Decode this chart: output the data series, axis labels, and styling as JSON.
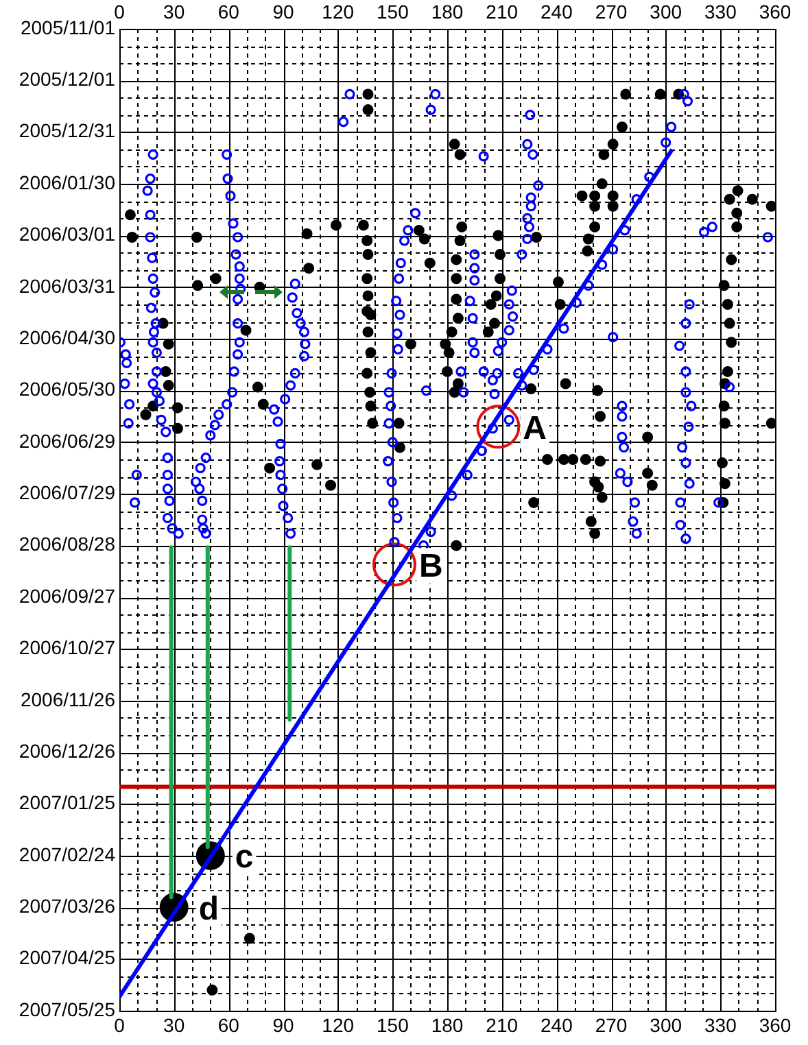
{
  "chart_data": {
    "type": "scatter",
    "orientation": "horizontal",
    "marker": "circle",
    "grid": true,
    "xlim": [
      0,
      360
    ],
    "xticks": [
      0,
      {
        "value": 10,
        "label": null
      },
      {
        "value": 20,
        "label": null
      },
      30,
      {
        "value": 40,
        "label": null
      },
      {
        "value": 50,
        "label": null
      },
      60,
      {
        "value": 70,
        "label": null
      },
      {
        "value": 80,
        "label": null
      },
      90,
      {
        "value": 100,
        "label": null
      },
      {
        "value": 110,
        "label": null
      },
      120,
      {
        "value": 130,
        "label": null
      },
      {
        "value": 140,
        "label": null
      },
      150,
      {
        "value": 160,
        "label": null
      },
      {
        "value": 170,
        "label": null
      },
      180,
      {
        "value": 190,
        "label": null
      },
      {
        "value": 200,
        "label": null
      },
      210,
      {
        "value": 220,
        "label": null
      },
      {
        "value": 230,
        "label": null
      },
      240,
      {
        "value": 250,
        "label": null
      },
      {
        "value": 260,
        "label": null
      },
      270,
      {
        "value": 280,
        "label": null
      },
      {
        "value": 290,
        "label": null
      },
      300,
      {
        "value": 310,
        "label": null
      },
      {
        "value": 320,
        "label": null
      },
      330,
      {
        "value": 340,
        "label": null
      },
      {
        "value": 350,
        "label": null
      },
      360
    ],
    "x2lim": [
      0,
      360
    ],
    "x2ticks": [
      0,
      30,
      60,
      90,
      120,
      150,
      180,
      210,
      240,
      270,
      300,
      330,
      360
    ],
    "ylim": [
      "2007-05-25",
      "2005-11-01"
    ],
    "yticks": [
      {
        "value": "2005-11-01",
        "label": "2005/11/01"
      },
      {
        "value": "2005-11-11",
        "label": null
      },
      {
        "value": "2005-11-21",
        "label": null
      },
      {
        "value": "2005-12-01",
        "label": "2005/12/01"
      },
      {
        "value": "2005-12-11",
        "label": null
      },
      {
        "value": "2005-12-21",
        "label": null
      },
      {
        "value": "2005-12-31",
        "label": "2005/12/31"
      },
      {
        "value": "2006-01-10",
        "label": null
      },
      {
        "value": "2006-01-20",
        "label": null
      },
      {
        "value": "2006-01-30",
        "label": "2006/01/30"
      },
      {
        "value": "2006-02-09",
        "label": null
      },
      {
        "value": "2006-02-19",
        "label": null
      },
      {
        "value": "2006-03-01",
        "label": "2006/03/01"
      },
      {
        "value": "2006-03-11",
        "label": null
      },
      {
        "value": "2006-03-21",
        "label": null
      },
      {
        "value": "2006-03-31",
        "label": "2006/03/31"
      },
      {
        "value": "2006-04-10",
        "label": null
      },
      {
        "value": "2006-04-20",
        "label": null
      },
      {
        "value": "2006-04-30",
        "label": "2006/04/30"
      },
      {
        "value": "2006-05-10",
        "label": null
      },
      {
        "value": "2006-05-20",
        "label": null
      },
      {
        "value": "2006-05-30",
        "label": "2006/05/30"
      },
      {
        "value": "2006-06-09",
        "label": null
      },
      {
        "value": "2006-06-19",
        "label": null
      },
      {
        "value": "2006-06-29",
        "label": "2006/06/29"
      },
      {
        "value": "2006-07-09",
        "label": null
      },
      {
        "value": "2006-07-19",
        "label": null
      },
      {
        "value": "2006-07-29",
        "label": "2006/07/29"
      },
      {
        "value": "2006-08-08",
        "label": null
      },
      {
        "value": "2006-08-18",
        "label": null
      },
      {
        "value": "2006-08-28",
        "label": "2006/08/28"
      },
      {
        "value": "2006-09-07",
        "label": null
      },
      {
        "value": "2006-09-17",
        "label": null
      },
      {
        "value": "2006-09-27",
        "label": "2006/09/27"
      },
      {
        "value": "2006-10-07",
        "label": null
      },
      {
        "value": "2006-10-17",
        "label": null
      },
      {
        "value": "2006-10-27",
        "label": "2006/10/27"
      },
      {
        "value": "2006-11-06",
        "label": null
      },
      {
        "value": "2006-11-16",
        "label": null
      },
      {
        "value": "2006-11-26",
        "label": "2006/11/26"
      },
      {
        "value": "2006-12-06",
        "label": null
      },
      {
        "value": "2006-12-16",
        "label": null
      },
      {
        "value": "2006-12-26",
        "label": "2006/12/26"
      },
      {
        "value": "2007-01-05",
        "label": null
      },
      {
        "value": "2007-01-15",
        "label": null
      },
      {
        "value": "2007-01-25",
        "label": "2007/01/25"
      },
      {
        "value": "2007-02-04",
        "label": null
      },
      {
        "value": "2007-02-14",
        "label": null
      },
      {
        "value": "2007-02-24",
        "label": "2007/02/24"
      },
      {
        "value": "2007-03-06",
        "label": null
      },
      {
        "value": "2007-03-16",
        "label": null
      },
      {
        "value": "2007-03-26",
        "label": "2007/03/26"
      },
      {
        "value": "2007-04-05",
        "label": null
      },
      {
        "value": "2007-04-15",
        "label": null
      },
      {
        "value": "2007-04-25",
        "label": "2007/04/25"
      },
      {
        "value": "2007-05-05",
        "label": null
      },
      {
        "value": "2007-05-15",
        "label": null
      },
      {
        "value": "2007-05-25",
        "label": "2007/05/25"
      }
    ],
    "series": [
      {
        "color": "#0000ff",
        "values": [
          126.5,
          123,
          173.5,
          171,
          18.5,
          17,
          15.5,
          17,
          17,
          18,
          18.5,
          19.5,
          17.5,
          20,
          19,
          18.5,
          20.5,
          20.5,
          18.5,
          20.5,
          22,
          23,
          25.5,
          26.5,
          26.5,
          26.5,
          27.5,
          26.5,
          29,
          32.5,
          0.5,
          3.5,
          4,
          3,
          5.5,
          5,
          9.5,
          8.5,
          59,
          59.5,
          61,
          62.5,
          65,
          64,
          66,
          66,
          66.5,
          65,
          65,
          66,
          65,
          63,
          62,
          59,
          54.5,
          52.5,
          50,
          47.5,
          44.5,
          42,
          44,
          45.5,
          45.5,
          46,
          47.5,
          96.5,
          95,
          97.5,
          99.5,
          101.5,
          102,
          101.5,
          96.5,
          94,
          91,
          85,
          87,
          88.5,
          88,
          88.5,
          89.5,
          90,
          92.5,
          94,
          154.5,
          153.5,
          152,
          154,
          152.5,
          153,
          149.5,
          148,
          149,
          148,
          150,
          147.5,
          149.5,
          150.5,
          152.5,
          162.5,
          158.5,
          156.5,
          168.5,
          225.5,
          224,
          227,
          200,
          230,
          226,
          226,
          224,
          225,
          224,
          221,
          195,
          195,
          195,
          192.5,
          194,
          194,
          195,
          187.5,
          189,
          215.5,
          214,
          216,
          214,
          210,
          208,
          200,
          207.5,
          205,
          206,
          219,
          221,
          303,
          300,
          310,
          312,
          271,
          276,
          276,
          276,
          277,
          275,
          279,
          283,
          282,
          284,
          313,
          311,
          307.5,
          311,
          311,
          314,
          312.5,
          309,
          311,
          313,
          308,
          308,
          311,
          321,
          325.5,
          356,
          335,
          329,
          291,
          284,
          277.5,
          271,
          265,
          257.5,
          251,
          244,
          235,
          227.5,
          214,
          205,
          199,
          191,
          182.5,
          151,
          167,
          171
        ],
        "x": [
          "2005-12-09",
          "2005-12-25",
          "2005-12-09",
          "2005-12-18",
          "2006-01-13",
          "2006-01-27",
          "2006-02-03",
          "2006-02-17",
          "2006-03-02",
          "2006-03-14",
          "2006-03-26",
          "2006-04-03",
          "2006-04-12",
          "2006-04-21",
          "2006-04-26",
          "2006-05-02",
          "2006-05-08",
          "2006-05-19",
          "2006-05-26",
          "2006-05-31",
          "2006-06-05",
          "2006-06-16",
          "2006-06-23",
          "2006-07-08",
          "2006-07-18",
          "2006-07-26",
          "2006-08-02",
          "2006-08-12",
          "2006-08-18",
          "2006-08-21",
          "2006-05-02",
          "2006-05-09",
          "2006-05-14",
          "2006-05-26",
          "2006-06-07",
          "2006-06-18",
          "2006-07-18",
          "2006-08-03",
          "2006-01-13",
          "2006-01-27",
          "2006-02-06",
          "2006-02-22",
          "2006-03-02",
          "2006-03-12",
          "2006-03-19",
          "2006-03-26",
          "2006-04-01",
          "2006-04-07",
          "2006-04-21",
          "2006-05-02",
          "2006-05-09",
          "2006-05-19",
          "2006-05-31",
          "2006-06-07",
          "2006-06-13",
          "2006-06-19",
          "2006-06-25",
          "2006-07-08",
          "2006-07-14",
          "2006-07-22",
          "2006-07-26",
          "2006-08-02",
          "2006-08-13",
          "2006-08-18",
          "2006-08-21",
          "2006-03-29",
          "2006-04-06",
          "2006-04-15",
          "2006-04-21",
          "2006-04-26",
          "2006-05-03",
          "2006-05-10",
          "2006-05-20",
          "2006-05-27",
          "2006-06-04",
          "2006-06-10",
          "2006-06-17",
          "2006-06-30",
          "2006-07-10",
          "2006-07-18",
          "2006-07-26",
          "2006-08-05",
          "2006-08-12",
          "2006-08-21",
          "2006-03-17",
          "2006-03-26",
          "2006-04-08",
          "2006-04-16",
          "2006-04-27",
          "2006-05-06",
          "2006-05-20",
          "2006-05-31",
          "2006-06-08",
          "2006-06-18",
          "2006-06-29",
          "2006-07-10",
          "2006-07-22",
          "2006-08-03",
          "2006-08-12",
          "2006-02-16",
          "2006-02-26",
          "2006-03-04",
          "2006-05-30",
          "2005-12-21",
          "2006-01-07",
          "2006-01-13",
          "2006-01-14",
          "2006-01-31",
          "2006-02-07",
          "2006-02-12",
          "2006-02-19",
          "2006-02-24",
          "2006-03-03",
          "2006-03-12",
          "2006-03-12",
          "2006-03-20",
          "2006-03-27",
          "2006-04-08",
          "2006-04-18",
          "2006-05-02",
          "2006-05-08",
          "2006-05-19",
          "2006-05-31",
          "2006-04-02",
          "2006-04-10",
          "2006-04-17",
          "2006-04-25",
          "2006-05-02",
          "2006-05-07",
          "2006-05-19",
          "2006-05-20",
          "2006-05-24",
          "2006-06-01",
          "2006-05-20",
          "2006-05-27",
          "2005-12-28",
          "2006-01-06",
          "2005-12-09",
          "2005-12-13",
          "2006-04-29",
          "2006-06-08",
          "2006-06-14",
          "2006-06-26",
          "2006-07-02",
          "2006-07-17",
          "2006-07-22",
          "2006-08-03",
          "2006-08-14",
          "2006-08-21",
          "2006-04-10",
          "2006-04-21",
          "2006-05-04",
          "2006-05-19",
          "2006-05-31",
          "2006-06-08",
          "2006-06-20",
          "2006-07-02",
          "2006-07-11",
          "2006-07-23",
          "2006-08-03",
          "2006-08-16",
          "2006-08-24",
          "2006-02-27",
          "2006-02-24",
          "2006-03-02",
          "2006-05-28",
          "2006-08-03",
          "2006-01-26",
          "2006-02-08",
          "2006-02-26",
          "2006-03-09",
          "2006-03-18",
          "2006-03-30",
          "2006-04-09",
          "2006-04-24",
          "2006-05-06",
          "2006-05-18",
          "2006-06-16",
          "2006-06-21",
          "2006-07-04",
          "2006-07-18",
          "2006-07-30",
          "2006-08-26",
          "2006-08-28",
          "2006-08-20"
        ]
      },
      {
        "color": "#000000",
        "values": [
          6,
          7,
          42.5,
          53,
          43,
          77,
          103,
          119,
          104,
          24,
          27,
          25.5,
          27,
          14.5,
          32,
          32,
          18.5,
          69.5,
          76,
          79,
          82.5,
          108.5,
          116,
          134,
          136,
          136.5,
          136,
          136.5,
          138,
          136.5,
          138,
          136,
          137.5,
          138,
          139,
          136,
          164.5,
          167.5,
          170.5,
          160,
          153.5,
          154,
          136.5,
          136.5,
          278,
          297,
          307,
          276,
          271,
          266,
          184,
          187,
          265,
          254,
          261,
          271,
          261,
          271,
          261,
          257,
          257.5,
          229,
          208,
          209,
          209,
          207,
          204,
          206,
          202.5,
          188,
          187,
          185,
          185,
          185,
          186,
          182.5,
          179,
          180,
          184,
          186,
          181,
          241,
          242,
          245,
          262.5,
          264,
          264,
          235,
          244,
          249,
          256,
          261,
          263,
          265,
          290,
          290,
          292.5,
          227.5,
          259,
          261,
          226,
          339.5,
          335,
          347.5,
          339,
          339,
          336,
          332,
          334,
          335,
          336,
          334,
          332.5,
          332,
          332.5,
          331,
          332.5,
          331.5,
          358,
          358,
          185,
          71.5,
          51
        ],
        "x": [
          "2006-02-17",
          "2006-03-02",
          "2006-03-02",
          "2006-03-26",
          "2006-03-30",
          "2006-03-31",
          "2006-02-28",
          "2006-02-23",
          "2006-03-20",
          "2006-04-21",
          "2006-05-03",
          "2006-05-19",
          "2006-05-27",
          "2006-06-13",
          "2006-06-09",
          "2006-06-21",
          "2006-06-08",
          "2006-04-25",
          "2006-05-28",
          "2006-06-07",
          "2006-07-14",
          "2006-07-12",
          "2006-07-24",
          "2006-02-23",
          "2006-03-04",
          "2006-03-12",
          "2006-03-26",
          "2006-04-05",
          "2006-04-16",
          "2006-04-26",
          "2006-05-08",
          "2006-05-20",
          "2006-05-31",
          "2006-06-08",
          "2006-06-18",
          "2006-04-14",
          "2006-02-26",
          "2006-03-03",
          "2006-03-17",
          "2006-05-03",
          "2006-06-18",
          "2006-07-02",
          "2005-12-09",
          "2005-12-18",
          "2005-12-09",
          "2005-12-09",
          "2005-12-09",
          "2005-12-28",
          "2006-01-07",
          "2006-01-13",
          "2006-01-07",
          "2006-01-13",
          "2006-01-30",
          "2006-02-06",
          "2006-02-06",
          "2006-02-06",
          "2006-02-12",
          "2006-02-12",
          "2006-02-24",
          "2006-03-10",
          "2006-03-03",
          "2006-03-02",
          "2006-03-01",
          "2006-03-12",
          "2006-03-26",
          "2006-04-05",
          "2006-04-10",
          "2006-04-21",
          "2006-04-26",
          "2006-02-24",
          "2006-03-04",
          "2006-03-15",
          "2006-03-26",
          "2006-04-07",
          "2006-04-18",
          "2006-04-26",
          "2006-05-03",
          "2006-05-19",
          "2006-05-31",
          "2006-05-26",
          "2006-05-08",
          "2006-03-28",
          "2006-04-10",
          "2006-05-26",
          "2006-05-30",
          "2006-06-14",
          "2006-07-10",
          "2006-07-09",
          "2006-07-09",
          "2006-07-09",
          "2006-07-09",
          "2006-07-22",
          "2006-07-25",
          "2006-07-31",
          "2006-06-26",
          "2006-07-17",
          "2006-07-24",
          "2006-08-03",
          "2006-08-14",
          "2006-08-21",
          "2006-05-29",
          "2006-02-03",
          "2006-02-08",
          "2006-02-08",
          "2006-02-16",
          "2006-02-24",
          "2006-03-15",
          "2006-03-30",
          "2006-04-10",
          "2006-04-21",
          "2006-05-02",
          "2006-05-19",
          "2006-05-26",
          "2006-06-08",
          "2006-06-18",
          "2006-07-11",
          "2006-07-23",
          "2006-08-03",
          "2006-02-12",
          "2006-06-18",
          "2006-08-28",
          "2007-04-13",
          "2007-05-13"
        ]
      },
      {
        "color": "#000000",
        "values": [
          50,
          30
        ],
        "x": [
          "2007-02-24",
          "2007-03-26"
        ]
      },
      {
        "color": "#e01010",
        "values": [
          208,
          151
        ],
        "x": [
          "2006-06-20",
          "2006-09-08"
        ]
      },
      {
        "type": "line",
        "color": "#0000ff",
        "marker": "none",
        "values": [
          0,
          303.5
        ],
        "x": [
          "2007-05-17",
          "2006-01-10"
        ]
      },
      {
        "type": "line",
        "color": "#1aa64a",
        "marker": "none",
        "values": [
          28.5,
          28.5
        ],
        "x": [
          "2006-08-29",
          "2007-03-20"
        ]
      },
      {
        "type": "line",
        "color": "#1aa64a",
        "marker": "none",
        "values": [
          48.5,
          48.5
        ],
        "x": [
          "2006-08-29",
          "2007-02-19"
        ]
      },
      {
        "type": "line",
        "color": "#1aa64a",
        "marker": "none",
        "values": [
          93.5,
          93.5
        ],
        "x": [
          "2006-08-29",
          "2006-12-07"
        ]
      }
    ],
    "ref_lines": [
      {
        "axis": "y",
        "value": "2007-01-15",
        "color": "#c00000"
      }
    ],
    "annotations": [
      {
        "text": "A",
        "x": 208,
        "y": "2006-06-20"
      },
      {
        "text": "B",
        "x": 151,
        "y": "2006-09-08"
      },
      {
        "text": "c",
        "x": 50,
        "y": "2007-02-24"
      },
      {
        "text": "d",
        "x": 30,
        "y": "2007-03-26"
      }
    ]
  }
}
